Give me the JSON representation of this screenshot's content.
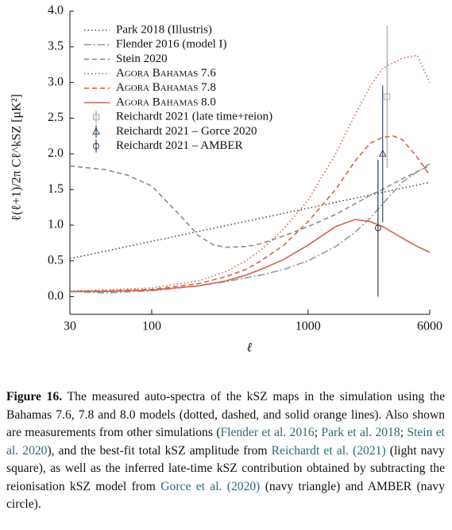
{
  "chart_data": {
    "type": "line",
    "xlabel": "ℓ",
    "ylabel": "ℓ(ℓ+1)/2π Cℓ^kSZ [μK²]",
    "xscale": "log",
    "xlim": [
      30,
      6000
    ],
    "xticks": [
      30,
      100,
      1000,
      6000
    ],
    "ylim": [
      -0.25,
      4.0
    ],
    "yticks": [
      {
        "value": 0,
        "label": "0.0"
      },
      {
        "value": 0.5,
        "label": "0.5"
      },
      {
        "value": 1,
        "label": "1.0"
      },
      {
        "value": 1.5,
        "label": "1.5"
      },
      {
        "value": 2,
        "label": "2.0"
      },
      {
        "value": 2.5,
        "label": "2.5"
      },
      {
        "value": 3,
        "label": "3.0"
      },
      {
        "value": 3.5,
        "label": "3.5"
      },
      {
        "value": 4,
        "label": "4.0"
      }
    ],
    "legend": "upper left",
    "series": [
      {
        "name": "Park 2018 (Illustris)",
        "color": "#4a4a4a",
        "style": "dotted",
        "x": [
          30,
          6000
        ],
        "values": [
          0.53,
          1.6
        ]
      },
      {
        "name": "Flender 2016 (model I)",
        "color": "#9a9a9a",
        "style": "dashdot",
        "x": [
          30,
          50,
          100,
          200,
          300,
          500,
          700,
          1000,
          1500,
          2000,
          2500,
          3000,
          4000,
          5000,
          6000
        ],
        "values": [
          0.07,
          0.05,
          0.08,
          0.15,
          0.21,
          0.3,
          0.38,
          0.5,
          0.7,
          0.9,
          1.1,
          1.3,
          1.6,
          1.75,
          1.86
        ]
      },
      {
        "name": "Stein 2020",
        "color": "#8a8a8a",
        "style": "dashed",
        "x": [
          30,
          50,
          70,
          100,
          150,
          200,
          250,
          300,
          400,
          500,
          700,
          1000,
          1500,
          2000,
          2500,
          3000,
          4000,
          5000,
          6000
        ],
        "values": [
          1.83,
          1.78,
          1.7,
          1.55,
          1.15,
          0.85,
          0.72,
          0.69,
          0.7,
          0.74,
          0.85,
          0.98,
          1.15,
          1.3,
          1.42,
          1.5,
          1.65,
          1.75,
          1.83
        ]
      },
      {
        "name": "Agora Bahamas 7.6",
        "color": "#d0654a",
        "style": "dotted",
        "x": [
          30,
          50,
          100,
          200,
          300,
          400,
          500,
          700,
          1000,
          1500,
          2000,
          2500,
          3000,
          4000,
          5000,
          6000
        ],
        "values": [
          0.08,
          0.09,
          0.12,
          0.22,
          0.35,
          0.5,
          0.65,
          0.95,
          1.35,
          2.0,
          2.55,
          2.95,
          3.2,
          3.34,
          3.38,
          3.0
        ]
      },
      {
        "name": "Agora Bahamas 7.8",
        "color": "#d0654a",
        "style": "dashed",
        "x": [
          30,
          50,
          100,
          200,
          300,
          400,
          500,
          700,
          1000,
          1500,
          2000,
          2500,
          3000,
          3500,
          4000,
          5000,
          6000
        ],
        "values": [
          0.07,
          0.08,
          0.1,
          0.18,
          0.28,
          0.38,
          0.5,
          0.72,
          1.05,
          1.5,
          1.9,
          2.15,
          2.23,
          2.25,
          2.2,
          1.95,
          1.7
        ]
      },
      {
        "name": "Agora Bahamas 8.0",
        "color": "#d0654a",
        "style": "solid",
        "x": [
          30,
          50,
          100,
          200,
          300,
          400,
          500,
          700,
          1000,
          1500,
          2000,
          2500,
          3000,
          4000,
          5000,
          6000
        ],
        "values": [
          0.07,
          0.07,
          0.09,
          0.15,
          0.22,
          0.3,
          0.38,
          0.52,
          0.72,
          0.98,
          1.08,
          1.05,
          0.98,
          0.82,
          0.7,
          0.62
        ]
      },
      {
        "name": "Reichardt 2021 (late time+reion)",
        "color": "#a8a8a8",
        "marker": "square",
        "x": [
          3200
        ],
        "values": [
          2.8
        ],
        "errors": [
          1.0
        ]
      },
      {
        "name": "Reichardt 2021 – Gorce 2020",
        "color": "#3b4b5e",
        "marker": "triangle",
        "x": [
          3000
        ],
        "values": [
          2.0
        ],
        "errors": [
          0.96
        ]
      },
      {
        "name": "Reichardt 2021 – AMBER",
        "color": "#2c3e50",
        "marker": "circle",
        "x": [
          2800
        ],
        "values": [
          0.96
        ],
        "errors": [
          0.96
        ]
      }
    ]
  },
  "caption": {
    "label": "Figure 16.",
    "parts": [
      {
        "text": " The measured auto-spectra of the kSZ maps in the simulation using the Bahamas 7.6, 7.8 and 8.0 models (dotted, dashed, and solid orange lines). Also shown are measurements from other simulations ("
      },
      {
        "text": "Flender et al. 2016",
        "style": "link"
      },
      {
        "text": "; "
      },
      {
        "text": "Park et al. 2018",
        "style": "link"
      },
      {
        "text": "; "
      },
      {
        "text": "Stein et al. 2020",
        "style": "link"
      },
      {
        "text": "), and the best-fit total kSZ amplitude from "
      },
      {
        "text": "Reichardt et al. (2021)",
        "style": "link"
      },
      {
        "text": " (light navy square), as well as the inferred late-time kSZ contribution obtained by subtracting the reionisation kSZ model from "
      },
      {
        "text": "Gorce et al. (2020)",
        "style": "link"
      },
      {
        "text": " (navy triangle) and AMBER (navy circle)."
      }
    ]
  }
}
